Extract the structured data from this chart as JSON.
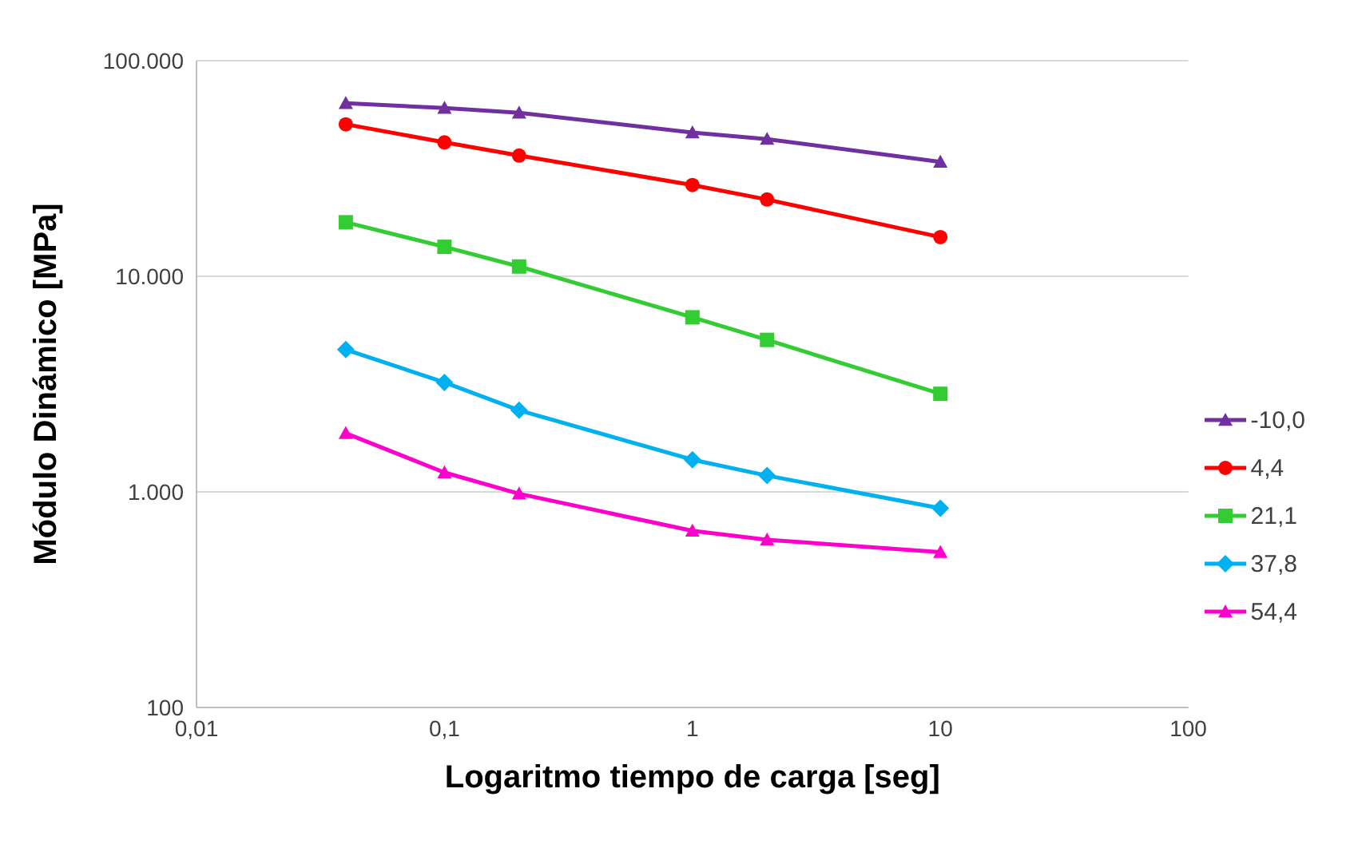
{
  "chart_data": {
    "type": "line",
    "xlabel": "Logaritmo tiempo de carga [seg]",
    "ylabel": "Módulo Dinámico  [MPa]",
    "log": "xy",
    "grid": "y",
    "legend": "right",
    "x": [
      0.04,
      0.1,
      0.2,
      1,
      2,
      10
    ],
    "xlim": [
      0.01,
      100
    ],
    "xticks": [
      {
        "value": 0.01,
        "label": "0,01"
      },
      {
        "value": 0.1,
        "label": "0,1"
      },
      1,
      10,
      100
    ],
    "ylim": [
      100,
      100000
    ],
    "yticks": [
      100,
      {
        "value": 1000,
        "label": "1.000"
      },
      {
        "value": 10000,
        "label": "10.000"
      },
      {
        "value": 100000,
        "label": "100.000"
      }
    ],
    "series": [
      {
        "name": "-10,0",
        "color": "#7030a0",
        "marker": "triangle",
        "values": [
          63500,
          60300,
          57300,
          46400,
          43300,
          33900
        ]
      },
      {
        "name": "4,4",
        "color": "#ff0000",
        "marker": "circle",
        "values": [
          50700,
          41800,
          36300,
          26500,
          22700,
          15200
        ]
      },
      {
        "name": "21,1",
        "color": "#33cc33",
        "marker": "square",
        "values": [
          17800,
          13700,
          11100,
          6450,
          5070,
          2850
        ]
      },
      {
        "name": "37,8",
        "color": "#00b0f0",
        "marker": "diamond",
        "values": [
          4570,
          3220,
          2390,
          1410,
          1190,
          840
        ]
      },
      {
        "name": "54,4",
        "color": "#ff00cc",
        "marker": "triangle",
        "values": [
          1870,
          1230,
          980,
          660,
          600,
          525
        ]
      }
    ]
  }
}
